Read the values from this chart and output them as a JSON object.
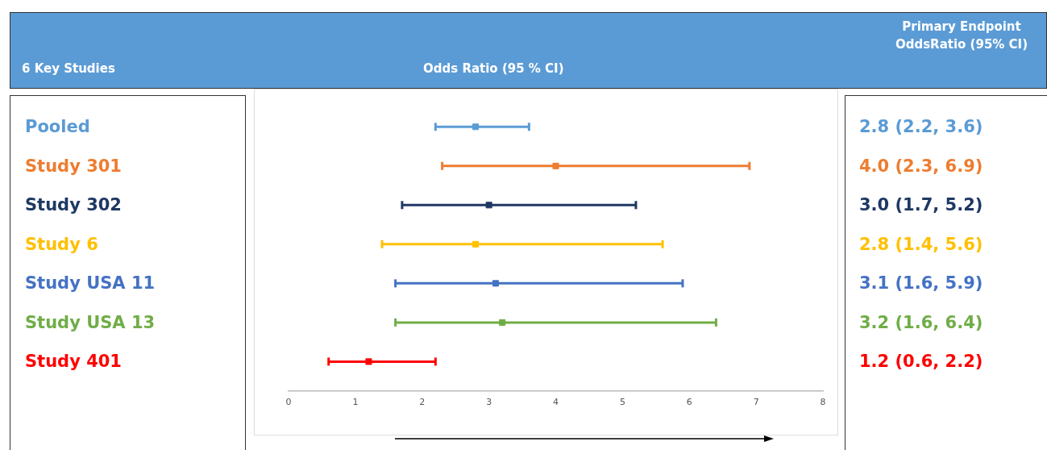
{
  "chart_data": {
    "type": "scatter",
    "orientation": "horizontal",
    "title": "Odds Ratio (95 % CI)",
    "annotations": [
      "6 Key Studies",
      "Primary Endpoint OddsRatio (95% CI)"
    ],
    "categories": [
      "Pooled",
      "Study 301",
      "Study 302",
      "Study 6",
      "Study USA 11",
      "Study USA 13",
      "Study 401"
    ],
    "values": [
      2.8,
      4.0,
      3.0,
      2.8,
      3.1,
      3.2,
      1.2
    ],
    "errors": [
      [
        2.2,
        3.6
      ],
      [
        2.3,
        6.9
      ],
      [
        1.7,
        5.2
      ],
      [
        1.4,
        5.6
      ],
      [
        1.6,
        5.9
      ],
      [
        1.6,
        6.4
      ],
      [
        0.6,
        2.2
      ]
    ],
    "colors": [
      "#5b9bd5",
      "#ed7d31",
      "#1f3864",
      "#ffc000",
      "#4472c4",
      "#70ad47",
      "#ff0000"
    ],
    "value_labels": [
      "2.8 (2.2, 3.6)",
      "4.0 (2.3, 6.9)",
      "3.0 (1.7, 5.2)",
      "2.8 (1.4, 5.6)",
      "3.1 (1.6, 5.9)",
      "3.2 (1.6, 6.4)",
      "1.2 (0.6, 2.2)"
    ],
    "xlim": [
      0,
      8
    ],
    "xticks": [
      0,
      1,
      2,
      3,
      4,
      5,
      6,
      7,
      8
    ],
    "grid": false,
    "legend": false,
    "marker": "square"
  }
}
